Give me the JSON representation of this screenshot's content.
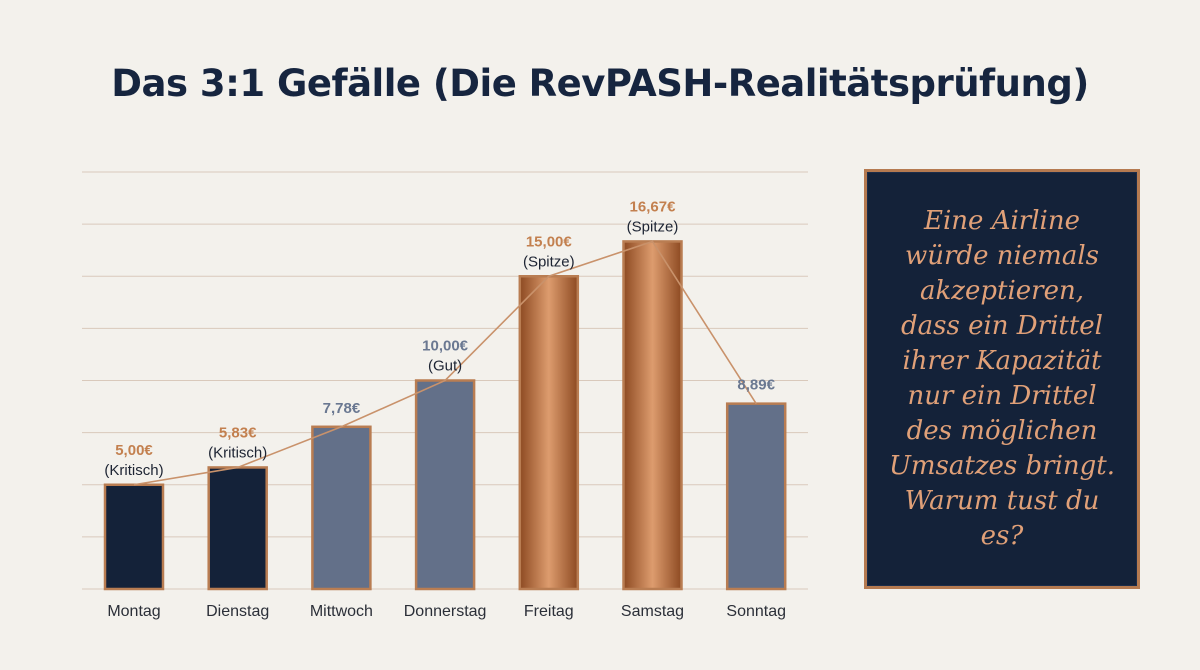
{
  "title": "Das 3:1 Gefälle (Die RevPASH-Realitätsprüfung)",
  "quote": "Eine Airline würde niemals akzeptieren, dass ein Drittel ihrer Kapazität nur ein Drittel des möglichen Umsatzes bringt. Warum tust du es?",
  "colors": {
    "navy": "#142239",
    "slate": "#637089",
    "copper": "#c37a4a",
    "copper_light": "#e0a078",
    "background": "#f3f1ec"
  },
  "chart_data": {
    "type": "bar",
    "title": "",
    "xlabel": "",
    "ylabel": "",
    "ylim": [
      0,
      20
    ],
    "grid": true,
    "categories": [
      "Montag",
      "Dienstag",
      "Mittwoch",
      "Donnerstag",
      "Freitag",
      "Samstag",
      "Sonntag"
    ],
    "values": [
      5.0,
      5.83,
      7.78,
      10.0,
      15.0,
      16.67,
      8.89
    ],
    "value_labels": [
      "5,00€",
      "5,83€",
      "7,78€",
      "10,00€",
      "15,00€",
      "16,67€",
      "8,89€"
    ],
    "annotations": [
      "(Kritisch)",
      "(Kritisch)",
      "",
      "(Gut)",
      "(Spitze)",
      "(Spitze)",
      ""
    ],
    "bar_styles": [
      "navy",
      "navy",
      "slate",
      "slate",
      "copper",
      "copper",
      "slate"
    ],
    "trend_line": true
  }
}
